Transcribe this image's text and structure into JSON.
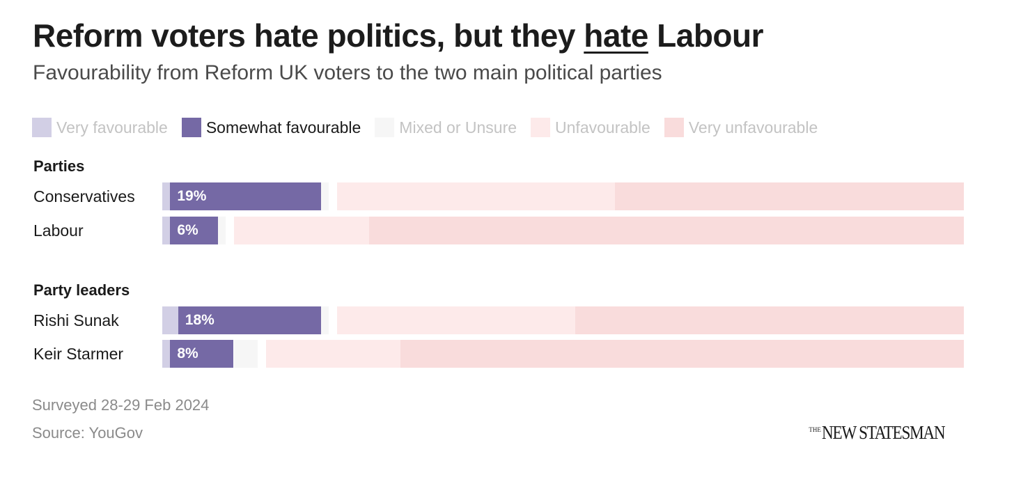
{
  "title": {
    "before": "Reform voters hate politics, but they ",
    "emphasis": "hate",
    "after": " Labour"
  },
  "subtitle": "Favourability from Reform UK voters to the two main political parties",
  "colors": {
    "very_favourable": "#d2cfe5",
    "somewhat_favourable": "#7569a5",
    "mixed_or_unsure": "#f6f6f6",
    "unfavourable": "#fdeaea",
    "very_unfavourable": "#f9dcdc"
  },
  "chart_data": {
    "type": "bar",
    "orientation": "horizontal",
    "stacked": true,
    "xlim": [
      0,
      100
    ],
    "legend": [
      "Very favourable",
      "Somewhat favourable",
      "Mixed or Unsure",
      "Unfavourable",
      "Very unfavourable"
    ],
    "legend_active": "Somewhat favourable",
    "groups": [
      {
        "name": "Parties",
        "rows": [
          {
            "label": "Conservatives",
            "values": [
              1,
              19,
              1,
              35,
              44
            ],
            "shown_label": "19%"
          },
          {
            "label": "Labour",
            "values": [
              1,
              6,
              1,
              17,
              75
            ],
            "shown_label": "6%"
          }
        ]
      },
      {
        "name": "Party leaders",
        "rows": [
          {
            "label": "Rishi Sunak",
            "values": [
              2,
              18,
              1,
              30,
              49
            ],
            "shown_label": "18%"
          },
          {
            "label": "Keir Starmer",
            "values": [
              1,
              8,
              3,
              17,
              71
            ],
            "shown_label": "8%"
          }
        ]
      }
    ]
  },
  "footer": {
    "surveyed": "Surveyed 28-29 Feb 2024",
    "source": "Source: YouGov"
  },
  "logo": {
    "small": "THE",
    "main": "NEW STATESMAN"
  }
}
